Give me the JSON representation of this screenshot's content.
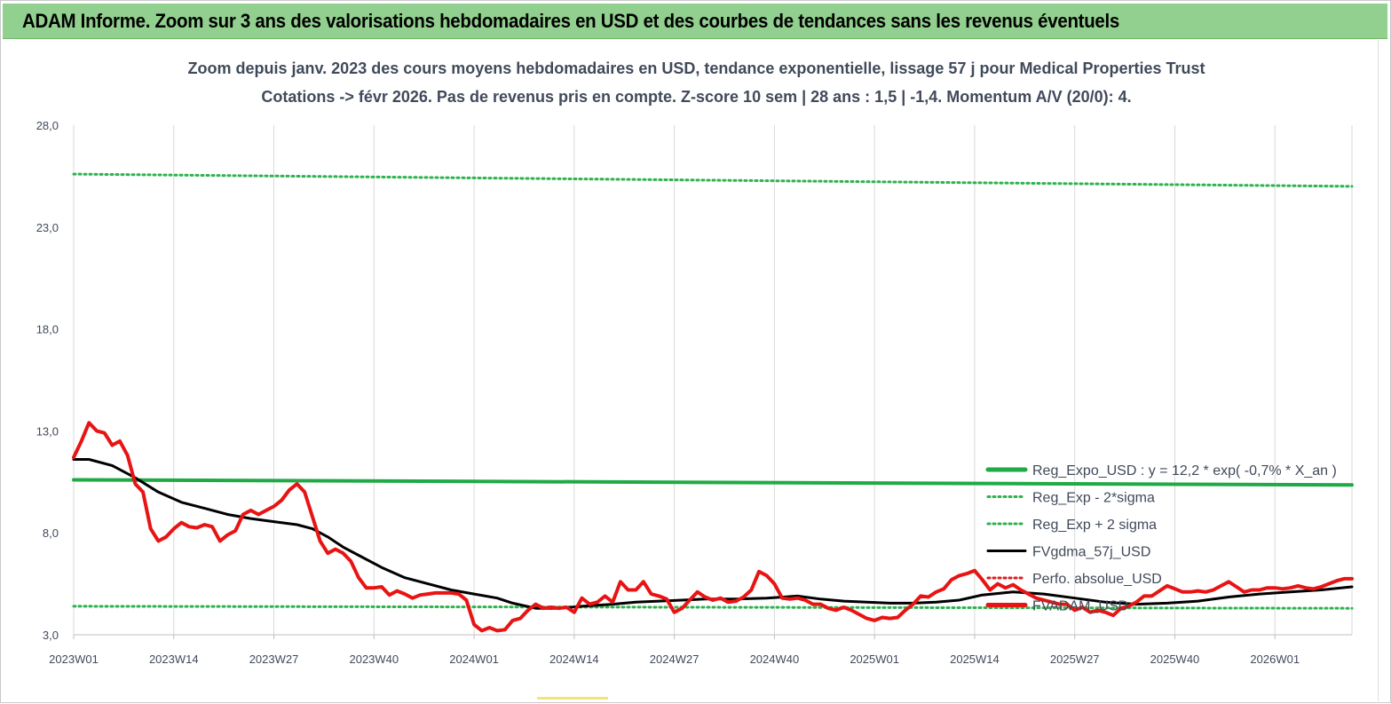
{
  "header": {
    "title": "ADAM Informe. Zoom sur 3 ans des valorisations hebdomadaires en USD et des courbes de tendances sans les revenus éventuels",
    "background": "#92d08f"
  },
  "chart_data": {
    "type": "line",
    "title": "Zoom depuis janv. 2023 des cours moyens hebdomadaires en USD, tendance exponentielle, lissage 57 j pour Medical Properties Trust",
    "subtitle": "Cotations -> févr 2026. Pas de revenus pris en compte. Z-score 10 sem | 28 ans : 1,5 | -1,4. Momentum A/V (20/0): 4.",
    "xlabel": "",
    "ylabel": "",
    "ylim": [
      3,
      28
    ],
    "yticks": [
      "3,0",
      "8,0",
      "13,0",
      "18,0",
      "23,0",
      "28,0"
    ],
    "ytick_values": [
      3,
      8,
      13,
      18,
      23,
      28
    ],
    "xticks": [
      "2023W01",
      "2023W14",
      "2023W27",
      "2023W40",
      "2024W01",
      "2024W14",
      "2024W27",
      "2024W40",
      "2025W01",
      "2025W14",
      "2025W27",
      "2025W40",
      "2026W01"
    ],
    "x_range_weeks": [
      0,
      166
    ],
    "grid": "vertical",
    "legend_position": "right",
    "series": [
      {
        "name": "Reg_Expo_USD : y = 12,2 * exp( -0,7% *  X_an )",
        "color": "#1faa45",
        "style": "solid-thick",
        "points": [
          [
            0,
            10.6
          ],
          [
            166,
            10.35
          ]
        ]
      },
      {
        "name": "Reg_Exp - 2*sigma",
        "color": "#2eb34f",
        "style": "dotted",
        "points": [
          [
            0,
            4.4
          ],
          [
            166,
            4.3
          ]
        ]
      },
      {
        "name": "Reg_Exp + 2 sigma",
        "color": "#2eb34f",
        "style": "dotted",
        "points": [
          [
            0,
            25.6
          ],
          [
            166,
            25.0
          ]
        ]
      },
      {
        "name": "FVgdma_57j_USD",
        "color": "#000000",
        "style": "solid",
        "points": [
          [
            0,
            11.6
          ],
          [
            2,
            11.6
          ],
          [
            5,
            11.3
          ],
          [
            8,
            10.7
          ],
          [
            11,
            10.0
          ],
          [
            14,
            9.5
          ],
          [
            17,
            9.2
          ],
          [
            20,
            8.9
          ],
          [
            23,
            8.7
          ],
          [
            26,
            8.55
          ],
          [
            29,
            8.4
          ],
          [
            31,
            8.2
          ],
          [
            33,
            7.8
          ],
          [
            35,
            7.3
          ],
          [
            37,
            6.9
          ],
          [
            40,
            6.3
          ],
          [
            43,
            5.8
          ],
          [
            46,
            5.5
          ],
          [
            49,
            5.2
          ],
          [
            52,
            5.0
          ],
          [
            55,
            4.8
          ],
          [
            57,
            4.55
          ],
          [
            60,
            4.3
          ],
          [
            63,
            4.3
          ],
          [
            66,
            4.4
          ],
          [
            70,
            4.5
          ],
          [
            73,
            4.6
          ],
          [
            76,
            4.65
          ],
          [
            79,
            4.7
          ],
          [
            82,
            4.75
          ],
          [
            86,
            4.75
          ],
          [
            90,
            4.8
          ],
          [
            94,
            4.9
          ],
          [
            97,
            4.75
          ],
          [
            100,
            4.65
          ],
          [
            103,
            4.6
          ],
          [
            106,
            4.55
          ],
          [
            109,
            4.55
          ],
          [
            112,
            4.6
          ],
          [
            115,
            4.7
          ],
          [
            118,
            4.95
          ],
          [
            122,
            5.1
          ],
          [
            126,
            5.0
          ],
          [
            130,
            4.8
          ],
          [
            134,
            4.6
          ],
          [
            138,
            4.5
          ],
          [
            142,
            4.55
          ],
          [
            146,
            4.65
          ],
          [
            150,
            4.85
          ],
          [
            154,
            5.0
          ],
          [
            158,
            5.1
          ],
          [
            162,
            5.2
          ],
          [
            166,
            5.35
          ]
        ]
      },
      {
        "name": "Perfo. absolue_USD",
        "color": "#e01b1b",
        "style": "dotted",
        "points": []
      },
      {
        "name": "FVADAM_USD",
        "color": "#e81414",
        "style": "solid-thick",
        "points": [
          [
            0,
            11.7
          ],
          [
            1,
            12.5
          ],
          [
            2,
            13.4
          ],
          [
            3,
            13.0
          ],
          [
            4,
            12.9
          ],
          [
            5,
            12.3
          ],
          [
            6,
            12.5
          ],
          [
            7,
            11.8
          ],
          [
            8,
            10.4
          ],
          [
            9,
            10.0
          ],
          [
            10,
            8.2
          ],
          [
            11,
            7.6
          ],
          [
            12,
            7.8
          ],
          [
            13,
            8.2
          ],
          [
            14,
            8.5
          ],
          [
            15,
            8.3
          ],
          [
            16,
            8.25
          ],
          [
            17,
            8.4
          ],
          [
            18,
            8.3
          ],
          [
            19,
            7.6
          ],
          [
            20,
            7.9
          ],
          [
            21,
            8.1
          ],
          [
            22,
            8.9
          ],
          [
            23,
            9.1
          ],
          [
            24,
            8.9
          ],
          [
            25,
            9.1
          ],
          [
            26,
            9.3
          ],
          [
            27,
            9.6
          ],
          [
            28,
            10.1
          ],
          [
            29,
            10.4
          ],
          [
            30,
            10.0
          ],
          [
            31,
            8.8
          ],
          [
            32,
            7.6
          ],
          [
            33,
            7.0
          ],
          [
            34,
            7.2
          ],
          [
            35,
            7.0
          ],
          [
            36,
            6.6
          ],
          [
            37,
            5.8
          ],
          [
            38,
            5.3
          ],
          [
            39,
            5.3
          ],
          [
            40,
            5.35
          ],
          [
            41,
            4.95
          ],
          [
            42,
            5.15
          ],
          [
            43,
            5.0
          ],
          [
            44,
            4.8
          ],
          [
            45,
            4.95
          ],
          [
            46,
            5.0
          ],
          [
            47,
            5.05
          ],
          [
            48,
            5.05
          ],
          [
            49,
            5.05
          ],
          [
            50,
            5.0
          ],
          [
            51,
            4.7
          ],
          [
            52,
            3.5
          ],
          [
            53,
            3.2
          ],
          [
            54,
            3.35
          ],
          [
            55,
            3.2
          ],
          [
            56,
            3.25
          ],
          [
            57,
            3.7
          ],
          [
            58,
            3.8
          ],
          [
            59,
            4.2
          ],
          [
            60,
            4.5
          ],
          [
            61,
            4.3
          ],
          [
            62,
            4.35
          ],
          [
            63,
            4.3
          ],
          [
            64,
            4.35
          ],
          [
            65,
            4.1
          ],
          [
            66,
            4.8
          ],
          [
            67,
            4.5
          ],
          [
            68,
            4.6
          ],
          [
            69,
            4.9
          ],
          [
            70,
            4.6
          ],
          [
            71,
            5.6
          ],
          [
            72,
            5.2
          ],
          [
            73,
            5.2
          ],
          [
            74,
            5.6
          ],
          [
            75,
            5.0
          ],
          [
            76,
            4.9
          ],
          [
            77,
            4.75
          ],
          [
            78,
            4.1
          ],
          [
            79,
            4.3
          ],
          [
            80,
            4.7
          ],
          [
            81,
            5.1
          ],
          [
            82,
            4.85
          ],
          [
            83,
            4.7
          ],
          [
            84,
            4.8
          ],
          [
            85,
            4.6
          ],
          [
            86,
            4.65
          ],
          [
            87,
            4.85
          ],
          [
            88,
            5.2
          ],
          [
            89,
            6.1
          ],
          [
            90,
            5.9
          ],
          [
            91,
            5.5
          ],
          [
            92,
            4.8
          ],
          [
            93,
            4.75
          ],
          [
            94,
            4.8
          ],
          [
            95,
            4.7
          ],
          [
            96,
            4.5
          ],
          [
            97,
            4.5
          ],
          [
            98,
            4.3
          ],
          [
            99,
            4.2
          ],
          [
            100,
            4.35
          ],
          [
            101,
            4.2
          ],
          [
            102,
            4.0
          ],
          [
            103,
            3.8
          ],
          [
            104,
            3.7
          ],
          [
            105,
            3.85
          ],
          [
            106,
            3.8
          ],
          [
            107,
            3.85
          ],
          [
            108,
            4.2
          ],
          [
            109,
            4.5
          ],
          [
            110,
            4.9
          ],
          [
            111,
            4.85
          ],
          [
            112,
            5.1
          ],
          [
            113,
            5.25
          ],
          [
            114,
            5.7
          ],
          [
            115,
            5.9
          ],
          [
            116,
            6.0
          ],
          [
            117,
            6.15
          ],
          [
            118,
            5.7
          ],
          [
            119,
            5.2
          ],
          [
            120,
            5.5
          ],
          [
            121,
            5.3
          ],
          [
            122,
            5.45
          ],
          [
            123,
            5.2
          ],
          [
            124,
            5.0
          ],
          [
            125,
            4.8
          ],
          [
            126,
            4.7
          ],
          [
            127,
            4.6
          ],
          [
            128,
            4.5
          ],
          [
            129,
            4.5
          ],
          [
            130,
            4.2
          ],
          [
            131,
            4.35
          ],
          [
            132,
            4.1
          ],
          [
            133,
            4.2
          ],
          [
            134,
            4.1
          ],
          [
            135,
            3.95
          ],
          [
            136,
            4.3
          ],
          [
            137,
            4.4
          ],
          [
            138,
            4.6
          ],
          [
            139,
            4.9
          ],
          [
            140,
            4.9
          ],
          [
            141,
            5.15
          ],
          [
            142,
            5.4
          ],
          [
            143,
            5.25
          ],
          [
            144,
            5.1
          ],
          [
            145,
            5.1
          ],
          [
            146,
            5.15
          ],
          [
            147,
            5.1
          ],
          [
            148,
            5.2
          ],
          [
            149,
            5.4
          ],
          [
            150,
            5.6
          ],
          [
            151,
            5.35
          ],
          [
            152,
            5.1
          ],
          [
            153,
            5.2
          ],
          [
            154,
            5.2
          ],
          [
            155,
            5.3
          ],
          [
            156,
            5.3
          ],
          [
            157,
            5.25
          ],
          [
            158,
            5.3
          ],
          [
            159,
            5.4
          ],
          [
            160,
            5.3
          ],
          [
            161,
            5.25
          ],
          [
            162,
            5.35
          ],
          [
            163,
            5.5
          ],
          [
            164,
            5.65
          ],
          [
            165,
            5.75
          ],
          [
            166,
            5.75
          ]
        ]
      }
    ]
  }
}
